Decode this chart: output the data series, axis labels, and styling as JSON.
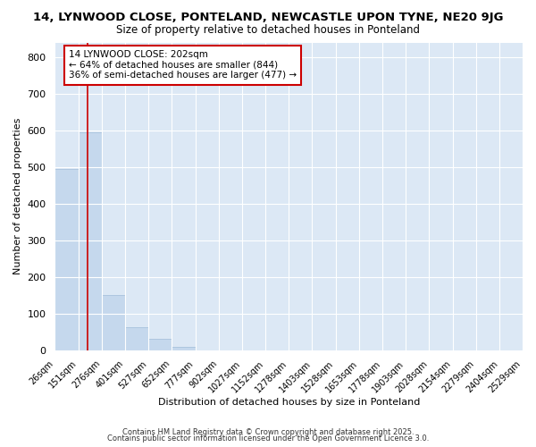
{
  "title": "14, LYNWOOD CLOSE, PONTELAND, NEWCASTLE UPON TYNE, NE20 9JG",
  "subtitle": "Size of property relative to detached houses in Ponteland",
  "xlabel": "Distribution of detached houses by size in Ponteland",
  "ylabel": "Number of detached properties",
  "bar_color": "#c5d8ed",
  "bar_edge_color": "#a0bcd8",
  "fig_bg_color": "#ffffff",
  "plot_bg_color": "#dce8f5",
  "grid_color": "#ffffff",
  "red_line_x": 202,
  "red_line_color": "#cc0000",
  "annotation_line1": "14 LYNWOOD CLOSE: 202sqm",
  "annotation_line2": "← 64% of detached houses are smaller (844)",
  "annotation_line3": "36% of semi-detached houses are larger (477) →",
  "annotation_box_color": "#cc0000",
  "bin_edges": [
    26,
    151,
    276,
    401,
    527,
    652,
    777,
    902,
    1027,
    1152,
    1278,
    1403,
    1528,
    1653,
    1778,
    1903,
    2028,
    2154,
    2279,
    2404,
    2529
  ],
  "bar_heights": [
    495,
    595,
    150,
    63,
    30,
    10,
    0,
    0,
    0,
    0,
    0,
    0,
    0,
    0,
    0,
    0,
    0,
    0,
    0,
    0
  ],
  "ylim": [
    0,
    840
  ],
  "yticks": [
    0,
    100,
    200,
    300,
    400,
    500,
    600,
    700,
    800
  ],
  "footnote1": "Contains HM Land Registry data © Crown copyright and database right 2025.",
  "footnote2": "Contains public sector information licensed under the Open Government Licence 3.0."
}
